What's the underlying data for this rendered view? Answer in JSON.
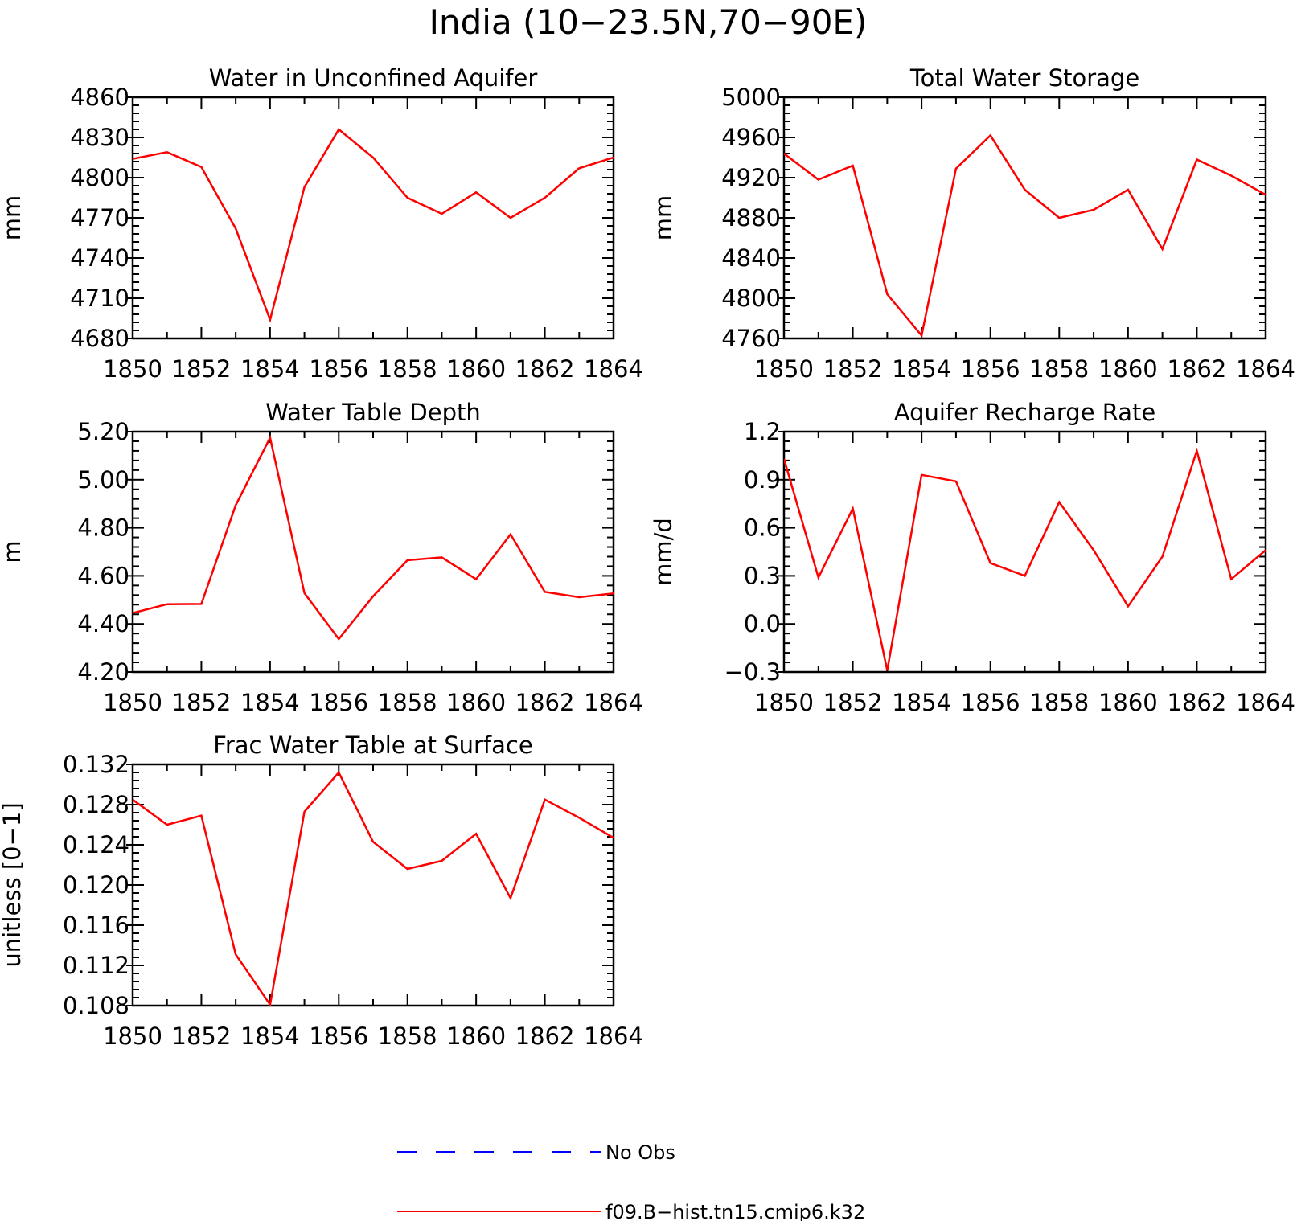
{
  "title": "India (10−23.5N,70−90E)",
  "chart_data": [
    {
      "type": "line",
      "title": "Water in Unconfined Aquifer",
      "ylabel": "mm",
      "xlim": [
        1850,
        1864
      ],
      "ylim": [
        4680,
        4860
      ],
      "x_ticks": [
        1850,
        1852,
        1854,
        1856,
        1858,
        1860,
        1862,
        1864
      ],
      "y_ticks": [
        "4860",
        "4830",
        "4800",
        "4770",
        "4740",
        "4710",
        "4680"
      ],
      "y_tick_values": [
        4860,
        4830,
        4800,
        4770,
        4740,
        4710,
        4680
      ],
      "series": [
        {
          "color": "#ff0000",
          "x": [
            1850,
            1851,
            1852,
            1853,
            1854,
            1855,
            1856,
            1857,
            1858,
            1859,
            1860,
            1861,
            1862,
            1863,
            1864
          ],
          "values": [
            4814,
            4819,
            4808,
            4762,
            4694,
            4793,
            4836,
            4815,
            4785,
            4773,
            4789,
            4770,
            4785,
            4807,
            4815
          ]
        }
      ]
    },
    {
      "type": "line",
      "title": "Total Water Storage",
      "ylabel": "mm",
      "xlim": [
        1850,
        1864
      ],
      "ylim": [
        4760,
        5000
      ],
      "x_ticks": [
        1850,
        1852,
        1854,
        1856,
        1858,
        1860,
        1862,
        1864
      ],
      "y_ticks": [
        "5000",
        "4960",
        "4920",
        "4880",
        "4840",
        "4800",
        "4760"
      ],
      "y_tick_values": [
        5000,
        4960,
        4920,
        4880,
        4840,
        4800,
        4760
      ],
      "series": [
        {
          "color": "#ff0000",
          "x": [
            1850,
            1851,
            1852,
            1853,
            1854,
            1855,
            1856,
            1857,
            1858,
            1859,
            1860,
            1861,
            1862,
            1863,
            1864
          ],
          "values": [
            4944,
            4918,
            4932,
            4804,
            4763,
            4929,
            4962,
            4908,
            4880,
            4888,
            4908,
            4849,
            4938,
            4922,
            4903
          ]
        }
      ]
    },
    {
      "type": "line",
      "title": "Water Table Depth",
      "ylabel": "m",
      "xlim": [
        1850,
        1864
      ],
      "ylim": [
        4.2,
        5.2
      ],
      "x_ticks": [
        1850,
        1852,
        1854,
        1856,
        1858,
        1860,
        1862,
        1864
      ],
      "y_ticks": [
        "5.20",
        "5.00",
        "4.80",
        "4.60",
        "4.40",
        "4.20"
      ],
      "y_tick_values": [
        5.2,
        5.0,
        4.8,
        4.6,
        4.4,
        4.2
      ],
      "series": [
        {
          "color": "#ff0000",
          "x": [
            1850,
            1851,
            1852,
            1853,
            1854,
            1855,
            1856,
            1857,
            1858,
            1859,
            1860,
            1861,
            1862,
            1863,
            1864
          ],
          "values": [
            4.445,
            4.482,
            4.483,
            4.894,
            5.175,
            4.528,
            4.337,
            4.515,
            4.665,
            4.677,
            4.586,
            4.773,
            4.533,
            4.511,
            4.527
          ]
        }
      ]
    },
    {
      "type": "line",
      "title": "Aquifer Recharge Rate",
      "ylabel": "mm/d",
      "xlim": [
        1850,
        1864
      ],
      "ylim": [
        -0.3,
        1.2
      ],
      "x_ticks": [
        1850,
        1852,
        1854,
        1856,
        1858,
        1860,
        1862,
        1864
      ],
      "y_ticks": [
        "1.2",
        "0.9",
        "0.6",
        "0.3",
        "0.0",
        "−0.3"
      ],
      "y_tick_values": [
        1.2,
        0.9,
        0.6,
        0.3,
        0.0,
        -0.3
      ],
      "series": [
        {
          "color": "#ff0000",
          "x": [
            1850,
            1851,
            1852,
            1853,
            1854,
            1855,
            1856,
            1857,
            1858,
            1859,
            1860,
            1861,
            1862,
            1863,
            1864
          ],
          "values": [
            1.03,
            0.29,
            0.72,
            -0.29,
            0.93,
            0.89,
            0.38,
            0.3,
            0.76,
            0.46,
            0.11,
            0.42,
            1.08,
            0.28,
            0.46
          ]
        }
      ]
    },
    {
      "type": "line",
      "title": "Frac Water Table at Surface",
      "ylabel": "unitless [0−1]",
      "xlim": [
        1850,
        1864
      ],
      "ylim": [
        0.108,
        0.132
      ],
      "x_ticks": [
        1850,
        1852,
        1854,
        1856,
        1858,
        1860,
        1862,
        1864
      ],
      "y_ticks": [
        "0.132",
        "0.128",
        "0.124",
        "0.120",
        "0.116",
        "0.112",
        "0.108"
      ],
      "y_tick_values": [
        0.132,
        0.128,
        0.124,
        0.12,
        0.116,
        0.112,
        0.108
      ],
      "series": [
        {
          "color": "#ff0000",
          "x": [
            1850,
            1851,
            1852,
            1853,
            1854,
            1855,
            1856,
            1857,
            1858,
            1859,
            1860,
            1861,
            1862,
            1863,
            1864
          ],
          "values": [
            0.1285,
            0.126,
            0.1269,
            0.1131,
            0.1081,
            0.1273,
            0.1312,
            0.1243,
            0.1216,
            0.1224,
            0.1251,
            0.1187,
            0.1285,
            0.1267,
            0.1247
          ]
        }
      ]
    }
  ],
  "legend": {
    "position": "bottom-center",
    "items": [
      {
        "label": "No Obs",
        "color": "#0000ff",
        "style": "dashed"
      },
      {
        "label": "f09.B−hist.tn15.cmip6.k32",
        "color": "#ff0000",
        "style": "solid"
      }
    ]
  }
}
